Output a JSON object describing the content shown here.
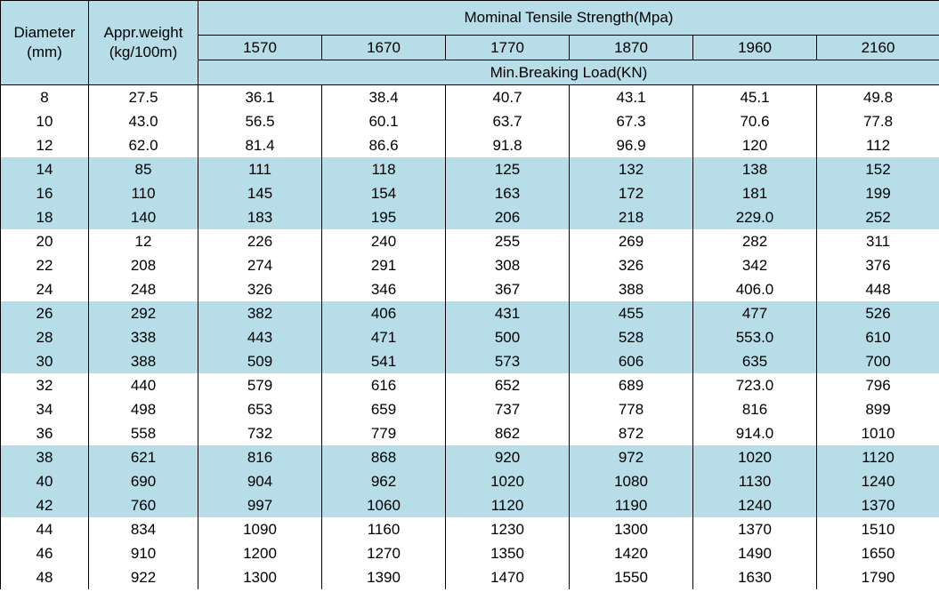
{
  "headers": {
    "diameter_line1": "Diameter",
    "diameter_line2": "(mm)",
    "weight_line1": "Appr.weight",
    "weight_line2": "(kg/100m)",
    "tensile_title": "Mominal Tensile Strength(Mpa)",
    "strengths": [
      "1570",
      "1670",
      "1770",
      "1870",
      "1960",
      "2160"
    ],
    "breaking_title": "Min.Breaking Load(KN)"
  },
  "band_color": "#b7dde8",
  "rows": [
    {
      "band": false,
      "cells": [
        "8",
        "27.5",
        "36.1",
        "38.4",
        "40.7",
        "43.1",
        "45.1",
        "49.8"
      ]
    },
    {
      "band": false,
      "cells": [
        "10",
        "43.0",
        "56.5",
        "60.1",
        "63.7",
        "67.3",
        "70.6",
        "77.8"
      ]
    },
    {
      "band": false,
      "cells": [
        "12",
        "62.0",
        "81.4",
        "86.6",
        "91.8",
        "96.9",
        "120",
        "112"
      ]
    },
    {
      "band": true,
      "cells": [
        "14",
        "85",
        "111",
        "118",
        "125",
        "132",
        "138",
        "152"
      ]
    },
    {
      "band": true,
      "cells": [
        "16",
        "110",
        "145",
        "154",
        "163",
        "172",
        "181",
        "199"
      ]
    },
    {
      "band": true,
      "cells": [
        "18",
        "140",
        "183",
        "195",
        "206",
        "218",
        "229.0",
        "252"
      ]
    },
    {
      "band": false,
      "cells": [
        "20",
        "12",
        "226",
        "240",
        "255",
        "269",
        "282",
        "311"
      ]
    },
    {
      "band": false,
      "cells": [
        "22",
        "208",
        "274",
        "291",
        "308",
        "326",
        "342",
        "376"
      ]
    },
    {
      "band": false,
      "cells": [
        "24",
        "248",
        "326",
        "346",
        "367",
        "388",
        "406.0",
        "448"
      ]
    },
    {
      "band": true,
      "cells": [
        "26",
        "292",
        "382",
        "406",
        "431",
        "455",
        "477",
        "526"
      ]
    },
    {
      "band": true,
      "cells": [
        "28",
        "338",
        "443",
        "471",
        "500",
        "528",
        "553.0",
        "610"
      ]
    },
    {
      "band": true,
      "cells": [
        "30",
        "388",
        "509",
        "541",
        "573",
        "606",
        "635",
        "700"
      ]
    },
    {
      "band": false,
      "cells": [
        "32",
        "440",
        "579",
        "616",
        "652",
        "689",
        "723.0",
        "796"
      ]
    },
    {
      "band": false,
      "cells": [
        "34",
        "498",
        "653",
        "659",
        "737",
        "778",
        "816",
        "899"
      ]
    },
    {
      "band": false,
      "cells": [
        "36",
        "558",
        "732",
        "779",
        "862",
        "872",
        "914.0",
        "1010"
      ]
    },
    {
      "band": true,
      "cells": [
        "38",
        "621",
        "816",
        "868",
        "920",
        "972",
        "1020",
        "1120"
      ]
    },
    {
      "band": true,
      "cells": [
        "40",
        "690",
        "904",
        "962",
        "1020",
        "1080",
        "1130",
        "1240"
      ]
    },
    {
      "band": true,
      "cells": [
        "42",
        "760",
        "997",
        "1060",
        "1120",
        "1190",
        "1240",
        "1370"
      ]
    },
    {
      "band": false,
      "cells": [
        "44",
        "834",
        "1090",
        "1160",
        "1230",
        "1300",
        "1370",
        "1510"
      ]
    },
    {
      "band": false,
      "cells": [
        "46",
        "910",
        "1200",
        "1270",
        "1350",
        "1420",
        "1490",
        "1650"
      ]
    },
    {
      "band": false,
      "cells": [
        "48",
        "922",
        "1300",
        "1390",
        "1470",
        "1550",
        "1630",
        "1790"
      ]
    }
  ]
}
